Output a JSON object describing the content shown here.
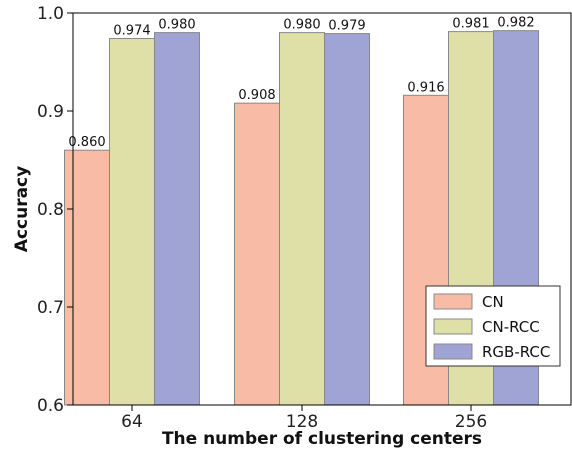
{
  "chart_data": {
    "type": "bar",
    "categories": [
      "64",
      "128",
      "256"
    ],
    "series": [
      {
        "name": "CN",
        "values": [
          0.86,
          0.908,
          0.916
        ],
        "labels": [
          "0.860",
          "0.908",
          "0.916"
        ],
        "color": "#f8bca6"
      },
      {
        "name": "CN-RCC",
        "values": [
          0.974,
          0.98,
          0.981
        ],
        "labels": [
          "0.974",
          "0.980",
          "0.981"
        ],
        "color": "#dfe0a8"
      },
      {
        "name": "RGB-RCC",
        "values": [
          0.98,
          0.979,
          0.982
        ],
        "labels": [
          "0.980",
          "0.979",
          "0.982"
        ],
        "color": "#a0a4d4"
      }
    ],
    "xlabel": "The number of clustering centers",
    "ylabel": "Accuracy",
    "ylim": [
      0.6,
      1.0
    ],
    "yticks": [
      0.6,
      0.7,
      0.8,
      0.9,
      1.0
    ],
    "ytick_labels": [
      "0.6",
      "0.7",
      "0.8",
      "0.9",
      "1.0"
    ],
    "grid": false,
    "legend_position": "bottom-right"
  }
}
